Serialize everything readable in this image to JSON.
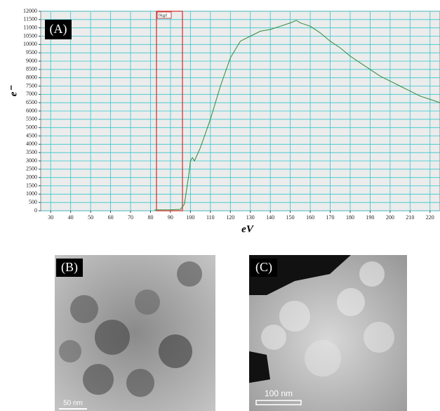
{
  "chart_data": {
    "type": "line",
    "label": "(A)",
    "x_label": "eV",
    "y_label": "e⁻",
    "x": [
      82,
      90,
      95,
      97,
      99,
      100,
      101,
      102,
      105,
      110,
      115,
      120,
      125,
      130,
      135,
      140,
      145,
      150,
      153,
      155,
      160,
      165,
      170,
      175,
      180,
      185,
      190,
      195,
      200,
      205,
      210,
      215,
      220,
      225
    ],
    "values": [
      50,
      60,
      80,
      400,
      2000,
      3000,
      3200,
      3000,
      3800,
      5500,
      7500,
      9200,
      10200,
      10500,
      10800,
      10900,
      11100,
      11300,
      11450,
      11300,
      11100,
      10700,
      10200,
      9800,
      9300,
      8900,
      8500,
      8100,
      7800,
      7500,
      7200,
      6900,
      6700,
      6500
    ],
    "color": "#2e8b3a",
    "xlim": [
      25,
      225
    ],
    "ylim": [
      0,
      12000
    ],
    "xticks": [
      30,
      40,
      50,
      60,
      70,
      80,
      90,
      100,
      110,
      120,
      130,
      140,
      150,
      160,
      170,
      180,
      190,
      200,
      210,
      220
    ],
    "yticks": [
      0,
      500,
      1000,
      1500,
      2000,
      2500,
      3000,
      3500,
      4000,
      4500,
      5000,
      5500,
      6000,
      6500,
      7000,
      7500,
      8000,
      8500,
      9000,
      9500,
      10000,
      10500,
      11000,
      11500,
      12000
    ],
    "grid": true,
    "window": {
      "label": "bkgd",
      "x": [
        83,
        96
      ]
    }
  },
  "images": [
    {
      "label": "(B)",
      "scale_bar": "50 nm"
    },
    {
      "label": "(C)",
      "scale_bar": "100 nm"
    }
  ]
}
